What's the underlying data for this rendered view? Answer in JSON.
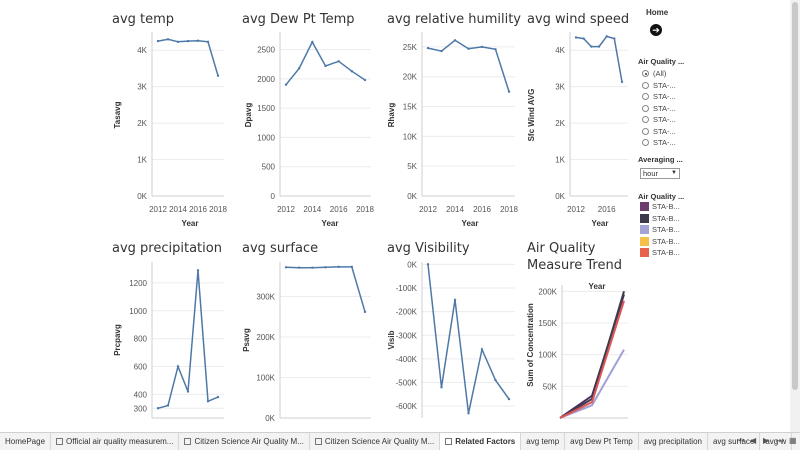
{
  "titles": [
    "avg temp",
    "avg Dew Pt Temp",
    "avg relative humility",
    "avg wind speed",
    "avg precipitation",
    "avg surface",
    "avg Visibility",
    "Air Quality",
    "Measure Trend"
  ],
  "chart_data": [
    {
      "type": "line",
      "title": "avg temp",
      "ylabel": "Tasavg",
      "xlabel": "Year",
      "x": [
        2012,
        2013,
        2014,
        2015,
        2016,
        2017,
        2018
      ],
      "values": [
        4250,
        4300,
        4230,
        4250,
        4260,
        4230,
        3300
      ],
      "xticks": [
        "2012",
        "2014",
        "2016",
        "2018"
      ],
      "yticks": [
        "0K",
        "1K",
        "2K",
        "3K",
        "4K"
      ],
      "ylim": [
        0,
        4500
      ],
      "series": [
        {
          "color": "#4e79a7"
        }
      ]
    },
    {
      "type": "line",
      "title": "avg Dew Pt Temp",
      "ylabel": "Dpavg",
      "xlabel": "Year",
      "x": [
        2012,
        2013,
        2014,
        2015,
        2016,
        2017,
        2018
      ],
      "values": [
        1900,
        2180,
        2630,
        2220,
        2300,
        2130,
        1980
      ],
      "xticks": [
        "2012",
        "2014",
        "2016",
        "2018"
      ],
      "yticks": [
        "0",
        "500",
        "1000",
        "1500",
        "2000",
        "2500"
      ],
      "ylim": [
        0,
        2800
      ],
      "series": [
        {
          "color": "#4e79a7"
        }
      ]
    },
    {
      "type": "line",
      "title": "avg relative humility",
      "ylabel": "Rhavg",
      "xlabel": "Year",
      "x": [
        2012,
        2013,
        2014,
        2015,
        2016,
        2017,
        2018
      ],
      "values": [
        24800,
        24300,
        26100,
        24700,
        25000,
        24600,
        17500
      ],
      "xticks": [
        "2012",
        "2014",
        "2016",
        "2018"
      ],
      "yticks": [
        "0K",
        "5K",
        "10K",
        "15K",
        "20K",
        "25K"
      ],
      "ylim": [
        0,
        27500
      ],
      "series": [
        {
          "color": "#4e79a7"
        }
      ]
    },
    {
      "type": "line",
      "title": "avg wind speed",
      "ylabel": "Sfc Wind AVG",
      "xlabel": "Year",
      "x": [
        2012,
        2013,
        2014,
        2015,
        2016,
        2017,
        2018
      ],
      "values": [
        4350,
        4320,
        4100,
        4100,
        4380,
        4320,
        3130
      ],
      "xticks": [
        "2012",
        "2016"
      ],
      "yticks": [
        "0K",
        "1K",
        "2K",
        "3K",
        "4K"
      ],
      "ylim": [
        0,
        4500
      ],
      "series": [
        {
          "color": "#4e79a7"
        }
      ]
    },
    {
      "type": "line",
      "title": "avg precipitation",
      "ylabel": "Prcpavg",
      "xlabel": "",
      "x": [
        2012,
        2013,
        2014,
        2015,
        2016,
        2017,
        2018
      ],
      "values": [
        300,
        320,
        600,
        420,
        1290,
        350,
        380
      ],
      "xticks": [],
      "yticks": [
        "300",
        "400",
        "600",
        "800",
        "1000",
        "1200"
      ],
      "ylim": [
        230,
        1350
      ],
      "series": [
        {
          "color": "#4e79a7"
        }
      ]
    },
    {
      "type": "line",
      "title": "avg surface",
      "ylabel": "Psavg",
      "xlabel": "",
      "x": [
        2012,
        2013,
        2014,
        2015,
        2016,
        2017,
        2018
      ],
      "values": [
        372000,
        371000,
        371000,
        372000,
        373000,
        373000,
        262000
      ],
      "xticks": [],
      "yticks": [
        "0K",
        "100K",
        "200K",
        "300K"
      ],
      "ylim": [
        0,
        385000
      ],
      "series": [
        {
          "color": "#4e79a7"
        }
      ]
    },
    {
      "type": "line",
      "title": "avg Visibility",
      "ylabel": "Visib",
      "xlabel": "",
      "x": [
        2012,
        2013,
        2014,
        2015,
        2016,
        2017,
        2018
      ],
      "values": [
        0,
        -520000,
        -150000,
        -630000,
        -360000,
        -490000,
        -570000
      ],
      "xticks": [],
      "yticks": [
        "0K",
        "-100K",
        "-200K",
        "-300K",
        "-400K",
        "-500K",
        "-600K"
      ],
      "ylim": [
        -650000,
        10000
      ],
      "series": [
        {
          "color": "#4e79a7"
        }
      ]
    },
    {
      "type": "line",
      "title": "Air Quality Measure Trend",
      "ylabel": "Sum of Concentration",
      "xlabel": "Year",
      "x": [
        0,
        1,
        2
      ],
      "yticks": [
        "50K",
        "100K",
        "150K",
        "200K"
      ],
      "ylim": [
        0,
        210000
      ],
      "series": [
        {
          "name": "STA-B...",
          "color": "#4b2e5e",
          "values": [
            0,
            35000,
            195000
          ]
        },
        {
          "name": "STA-B...",
          "color": "#3d3d4d",
          "values": [
            0,
            30000,
            200000
          ]
        },
        {
          "name": "STA-B...",
          "color": "#a0a0d8",
          "values": [
            0,
            20000,
            108000
          ]
        },
        {
          "name": "STA-B...",
          "color": "#e05555",
          "values": [
            0,
            25000,
            185000
          ]
        }
      ]
    }
  ],
  "panel": {
    "home_label": "Home",
    "home_icon": "arrow-right-circle-icon",
    "filter_title": "Air Quality ...",
    "radio_options": [
      "(All)",
      "STA-...",
      "STA-...",
      "STA-...",
      "STA-...",
      "STA-...",
      "STA-..."
    ],
    "averaging_title": "Averaging ...",
    "averaging_value": "hour",
    "legend_title": "Air Quality ...",
    "legend_items": [
      {
        "label": "STA-B...",
        "color": "#6b3e6e"
      },
      {
        "label": "STA-B...",
        "color": "#3b3b4b"
      },
      {
        "label": "STA-B...",
        "color": "#a3a3d6"
      },
      {
        "label": "STA-B...",
        "color": "#f5c14a"
      },
      {
        "label": "STA-B...",
        "color": "#e8614d"
      }
    ]
  },
  "tabs": [
    {
      "label": "HomePage",
      "active": false
    },
    {
      "label": "Official air quality measurem...",
      "active": false
    },
    {
      "label": "Citizen Science Air Quality M...",
      "active": false
    },
    {
      "label": "Citizen Science Air Quality M...",
      "active": false
    },
    {
      "label": "Related Factors",
      "active": true
    },
    {
      "label": "avg temp",
      "active": false
    },
    {
      "label": "avg Dew Pt Temp",
      "active": false
    },
    {
      "label": "avg precipitation",
      "active": false
    },
    {
      "label": "avg surface",
      "active": false
    },
    {
      "label": "avg w",
      "active": false
    }
  ]
}
